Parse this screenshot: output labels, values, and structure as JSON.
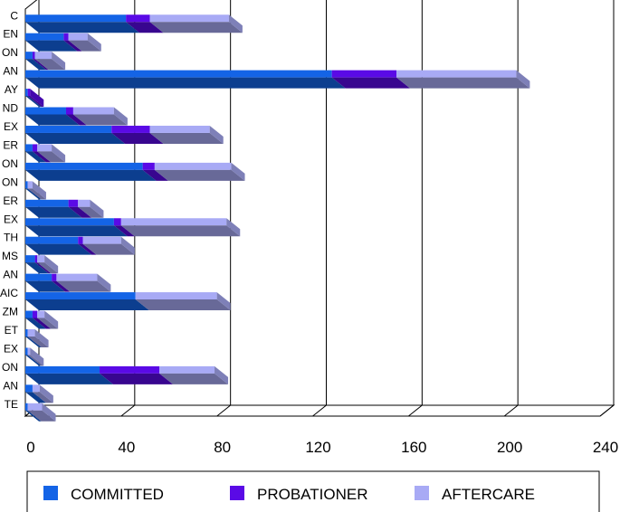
{
  "chart_data": {
    "type": "bar",
    "orientation": "horizontal",
    "stacked": true,
    "three_d": true,
    "title": "",
    "xlabel": "",
    "ylabel": "",
    "xlim": [
      0,
      240
    ],
    "x_ticks": [
      "0",
      "40",
      "80",
      "120",
      "160",
      "200",
      "240"
    ],
    "grid": true,
    "legend_position": "bottom",
    "categories": [
      "",
      "",
      "",
      "",
      "",
      "",
      "",
      "",
      "",
      "",
      "",
      "",
      "",
      "",
      "",
      "",
      "",
      "",
      "",
      "",
      "",
      ""
    ],
    "series": [
      {
        "name": "COMMITTED",
        "color": "#1464e6",
        "values": [
          42,
          16,
          3,
          128,
          1,
          17,
          36,
          3,
          49,
          1,
          18,
          37,
          22,
          4,
          11,
          46,
          3,
          1,
          1,
          31,
          3,
          1
        ]
      },
      {
        "name": "PROBATIONER",
        "color": "#5a0ae6",
        "values": [
          10,
          2,
          1,
          27,
          1,
          3,
          16,
          2,
          5,
          0,
          4,
          3,
          2,
          1,
          2,
          0,
          2,
          0,
          0,
          25,
          0,
          0
        ]
      },
      {
        "name": "AFTERCARE",
        "color": "#a8aaf5",
        "values": [
          33,
          8,
          7,
          50,
          0,
          17,
          25,
          6,
          32,
          2,
          5,
          44,
          16,
          3,
          17,
          34,
          3,
          3,
          1,
          23,
          3,
          6
        ]
      }
    ],
    "visible_label_fragments": [
      "C",
      "EN",
      "ON",
      "AN",
      "AY",
      "ND",
      "EX",
      "ER",
      "ON",
      "ON",
      "ER",
      "EX",
      "TH",
      "MS",
      "AN",
      "AIC",
      "ZM",
      "ET",
      "EX",
      "ON",
      "AN",
      "TE"
    ]
  }
}
